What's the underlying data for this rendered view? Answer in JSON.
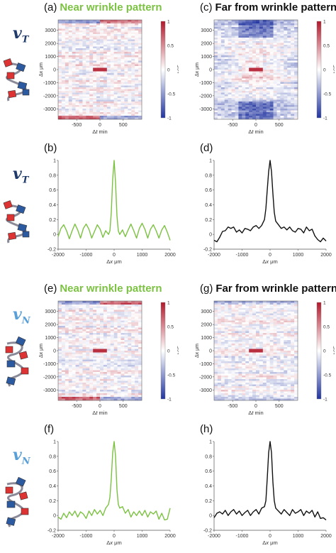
{
  "panels": [
    {
      "letter": "(a)",
      "title": "Near wrinkle pattern",
      "title_color": "green"
    },
    {
      "letter": "(b)",
      "title": ""
    },
    {
      "letter": "(c)",
      "title": "Far from wrinkle pattern",
      "title_color": "black"
    },
    {
      "letter": "(d)",
      "title": ""
    },
    {
      "letter": "(e)",
      "title": "Near wrinkle pattern",
      "title_color": "green"
    },
    {
      "letter": "(f)",
      "title": ""
    },
    {
      "letter": "(g)",
      "title": "Far from wrinkle pattern",
      "title_color": "black"
    },
    {
      "letter": "(h)",
      "title": ""
    }
  ],
  "symbols": {
    "top": {
      "main": "v",
      "sub": "T",
      "color": "#1f3a6b"
    },
    "bottom": {
      "main": "v",
      "sub": "N",
      "color": "#5aa0d8"
    }
  },
  "heatmap_axes": {
    "xlabel_prefix": "Δ",
    "xlabel_var": "t",
    "xlabel_unit": " min",
    "ylabel": "Δx μm",
    "xticks": [
      "-500",
      "0",
      "500"
    ],
    "yticks": [
      "3000",
      "2000",
      "1000",
      "0",
      "-1000",
      "-2000",
      "-3000"
    ],
    "colorbar_ticks": [
      "1",
      "0.5",
      "0",
      "-0.5",
      "-1"
    ],
    "colorbar_label": "ACF"
  },
  "line_axes": {
    "xlabel_prefix": "Δ",
    "xlabel_var": "x",
    "xlabel_unit": " μm",
    "xticks": [
      "-2000",
      "-1000",
      "0",
      "1000",
      "2000"
    ],
    "yticks": [
      "1",
      "0.8",
      "0.6",
      "0.4",
      "0.2",
      "0",
      "-0.2"
    ]
  },
  "colors": {
    "green": "#7cc242",
    "black": "#111111",
    "red": "#d32f2f",
    "blue": "#3040a8"
  },
  "chart_data": [
    {
      "type": "heatmap",
      "panel": "(a)",
      "xlim": [
        -900,
        900
      ],
      "ylim": [
        -3800,
        3800
      ],
      "clim": [
        -1,
        1
      ],
      "xlabel": "Δt min",
      "ylabel": "Δx μm",
      "colorbar_label": "ACF"
    },
    {
      "type": "heatmap",
      "panel": "(c)",
      "xlim": [
        -900,
        900
      ],
      "ylim": [
        -3800,
        3800
      ],
      "clim": [
        -1,
        1
      ],
      "xlabel": "Δt min",
      "ylabel": "Δx μm",
      "colorbar_label": "ACF"
    },
    {
      "type": "heatmap",
      "panel": "(e)",
      "xlim": [
        -900,
        900
      ],
      "ylim": [
        -3800,
        3800
      ],
      "clim": [
        -1,
        1
      ],
      "xlabel": "Δt min",
      "ylabel": "Δx μm",
      "colorbar_label": "ACF"
    },
    {
      "type": "heatmap",
      "panel": "(g)",
      "xlim": [
        -900,
        900
      ],
      "ylim": [
        -3800,
        3800
      ],
      "clim": [
        -1,
        1
      ],
      "xlabel": "Δt min",
      "ylabel": "Δx μm",
      "colorbar_label": "ACF"
    },
    {
      "type": "line",
      "panel": "(b)",
      "color": "#7cc242",
      "xlabel": "Δx μm",
      "xlim": [
        -2000,
        2000
      ],
      "ylim": [
        -0.2,
        1
      ],
      "x": [
        -2000,
        -1900,
        -1800,
        -1700,
        -1600,
        -1500,
        -1400,
        -1300,
        -1200,
        -1100,
        -1000,
        -900,
        -800,
        -700,
        -600,
        -500,
        -400,
        -300,
        -200,
        -150,
        -100,
        -50,
        0,
        50,
        100,
        150,
        200,
        300,
        400,
        500,
        600,
        700,
        800,
        900,
        1000,
        1100,
        1200,
        1300,
        1400,
        1500,
        1600,
        1700,
        1800,
        1900,
        2000
      ],
      "values": [
        -0.03,
        0.08,
        0.13,
        0.05,
        -0.06,
        0.05,
        0.14,
        0.06,
        -0.05,
        0.08,
        0.14,
        0.07,
        -0.05,
        0.04,
        0.13,
        0.07,
        -0.04,
        0.05,
        0.0,
        0.05,
        0.3,
        0.75,
        1.0,
        0.7,
        0.25,
        0.05,
        0.0,
        0.06,
        -0.03,
        0.06,
        0.14,
        0.05,
        -0.05,
        0.08,
        0.15,
        0.07,
        -0.05,
        0.07,
        0.13,
        0.05,
        -0.05,
        0.06,
        0.12,
        0.03,
        -0.08
      ]
    },
    {
      "type": "line",
      "panel": "(d)",
      "color": "#111111",
      "xlabel": "Δx μm",
      "xlim": [
        -2000,
        2000
      ],
      "ylim": [
        -0.2,
        1
      ],
      "x": [
        -2000,
        -1900,
        -1800,
        -1700,
        -1600,
        -1500,
        -1400,
        -1300,
        -1200,
        -1100,
        -1000,
        -900,
        -800,
        -700,
        -600,
        -500,
        -400,
        -300,
        -200,
        -150,
        -100,
        -50,
        0,
        50,
        100,
        150,
        200,
        300,
        400,
        500,
        600,
        700,
        800,
        900,
        1000,
        1100,
        1200,
        1300,
        1400,
        1500,
        1600,
        1700,
        1800,
        1900,
        2000
      ],
      "values": [
        -0.08,
        -0.1,
        -0.04,
        0.04,
        0.05,
        0.1,
        0.08,
        0.1,
        0.03,
        0.06,
        0.02,
        0.08,
        0.07,
        0.05,
        0.1,
        0.12,
        0.08,
        0.12,
        0.2,
        0.35,
        0.6,
        0.85,
        1.0,
        0.85,
        0.55,
        0.3,
        0.18,
        0.13,
        0.08,
        0.1,
        0.06,
        0.1,
        0.05,
        0.03,
        0.08,
        0.07,
        0.02,
        0.1,
        0.05,
        0.07,
        -0.02,
        -0.07,
        -0.1,
        -0.05,
        -0.09
      ]
    },
    {
      "type": "line",
      "panel": "(f)",
      "color": "#7cc242",
      "xlabel": "Δx μm",
      "xlim": [
        -2000,
        2000
      ],
      "ylim": [
        -0.2,
        1
      ],
      "x": [
        -2000,
        -1900,
        -1800,
        -1700,
        -1600,
        -1500,
        -1400,
        -1300,
        -1200,
        -1100,
        -1000,
        -900,
        -800,
        -700,
        -600,
        -500,
        -400,
        -300,
        -200,
        -150,
        -100,
        -50,
        0,
        50,
        100,
        150,
        200,
        300,
        400,
        500,
        600,
        700,
        800,
        900,
        1000,
        1100,
        1200,
        1300,
        1400,
        1500,
        1600,
        1700,
        1800,
        1900,
        2000
      ],
      "values": [
        -0.02,
        -0.05,
        0.03,
        -0.03,
        0.05,
        0.0,
        0.06,
        -0.02,
        0.05,
        0.02,
        -0.04,
        0.06,
        0.0,
        0.08,
        0.02,
        0.07,
        0.0,
        0.1,
        0.15,
        0.25,
        0.5,
        0.85,
        1.0,
        0.8,
        0.35,
        0.15,
        0.1,
        0.12,
        0.03,
        0.08,
        -0.02,
        0.05,
        0.0,
        0.06,
        0.0,
        0.07,
        -0.02,
        0.05,
        0.02,
        0.06,
        -0.05,
        0.03,
        -0.06,
        -0.05,
        0.1
      ]
    },
    {
      "type": "line",
      "panel": "(h)",
      "color": "#111111",
      "xlabel": "Δx μm",
      "xlim": [
        -2000,
        2000
      ],
      "ylim": [
        -0.2,
        1
      ],
      "x": [
        -2000,
        -1900,
        -1800,
        -1700,
        -1600,
        -1500,
        -1400,
        -1300,
        -1200,
        -1100,
        -1000,
        -900,
        -800,
        -700,
        -600,
        -500,
        -400,
        -300,
        -200,
        -150,
        -100,
        -50,
        0,
        50,
        100,
        150,
        200,
        300,
        400,
        500,
        600,
        700,
        800,
        900,
        1000,
        1100,
        1200,
        1300,
        1400,
        1500,
        1600,
        1700,
        1800,
        1900,
        2000
      ],
      "values": [
        -0.03,
        0.03,
        0.05,
        0.02,
        0.07,
        0.0,
        0.05,
        0.08,
        0.02,
        0.06,
        0.0,
        0.04,
        0.07,
        0.0,
        0.05,
        0.08,
        0.02,
        0.1,
        0.12,
        0.2,
        0.5,
        0.85,
        1.0,
        0.85,
        0.45,
        0.2,
        0.1,
        0.06,
        0.02,
        0.08,
        0.04,
        0.0,
        0.08,
        0.03,
        0.05,
        0.08,
        0.0,
        0.06,
        0.03,
        0.07,
        -0.02,
        0.05,
        -0.04,
        -0.03,
        -0.06
      ]
    }
  ]
}
